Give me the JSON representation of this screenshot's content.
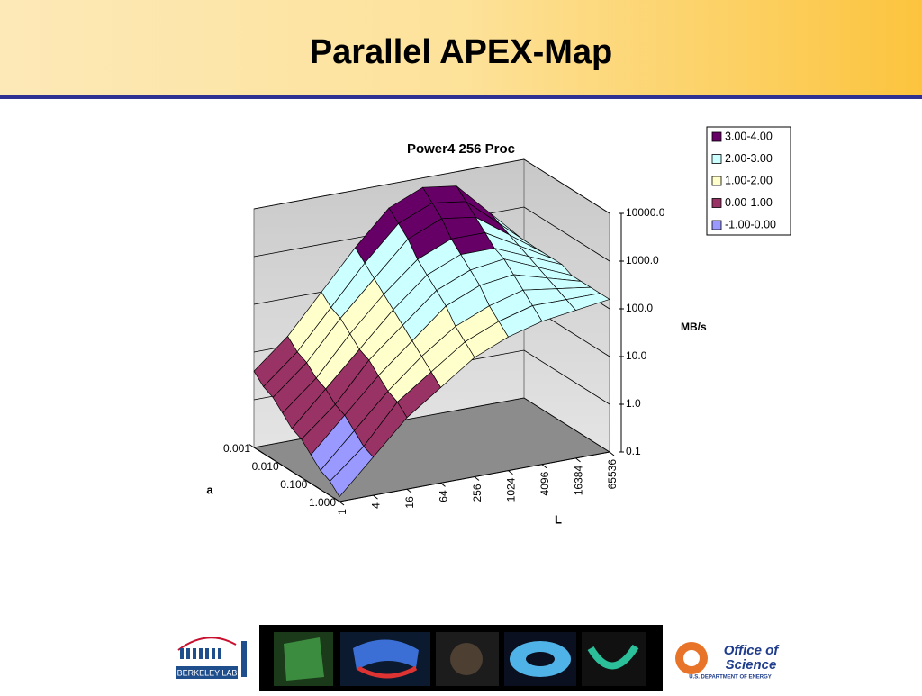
{
  "header": {
    "title": "Parallel APEX-Map"
  },
  "chart_data": {
    "type": "surface",
    "title": "Power4 256 Proc",
    "x_label": "L",
    "y_label": "a",
    "z_label": "MB/s",
    "x_categories": [
      "1",
      "4",
      "16",
      "64",
      "256",
      "1024",
      "4096",
      "16384",
      "65536"
    ],
    "y_categories": [
      "0.001",
      null,
      null,
      "0.010",
      null,
      null,
      "0.100",
      null,
      null,
      "1.000"
    ],
    "values": [
      [
        0.6,
        1.2,
        2.0,
        2.8,
        3.5,
        3.8,
        3.7,
        3.0,
        2.3
      ],
      [
        0.4,
        1.0,
        1.8,
        2.6,
        3.3,
        3.6,
        3.5,
        2.9,
        2.3
      ],
      [
        0.3,
        0.9,
        1.7,
        2.4,
        3.1,
        3.4,
        3.3,
        2.8,
        2.3
      ],
      [
        0.1,
        0.7,
        1.5,
        2.2,
        2.8,
        3.1,
        3.1,
        2.7,
        2.3
      ],
      [
        -0.1,
        0.6,
        1.3,
        2.0,
        2.6,
        2.9,
        2.9,
        2.6,
        2.3
      ],
      [
        -0.2,
        0.4,
        1.2,
        1.8,
        2.4,
        2.7,
        2.8,
        2.5,
        2.2
      ],
      [
        -0.4,
        0.3,
        1.0,
        1.6,
        2.2,
        2.5,
        2.6,
        2.4,
        2.2
      ],
      [
        -0.6,
        0.1,
        0.8,
        1.4,
        1.9,
        2.2,
        2.4,
        2.3,
        2.2
      ],
      [
        -0.7,
        -0.1,
        0.7,
        1.2,
        1.7,
        2.0,
        2.2,
        2.2,
        2.2
      ],
      [
        -0.9,
        -0.2,
        0.5,
        1.0,
        1.5,
        1.8,
        2.0,
        2.1,
        2.2
      ]
    ],
    "zlim": [
      -1,
      4
    ],
    "zticks": [
      {
        "value": -1,
        "label": "0.1"
      },
      {
        "value": 0,
        "label": "1.0"
      },
      {
        "value": 1,
        "label": "10.0"
      },
      {
        "value": 2,
        "label": "100.0"
      },
      {
        "value": 3,
        "label": "1000.0"
      },
      {
        "value": 4,
        "label": "10000.0"
      }
    ],
    "grid": true,
    "legend_position": "top-right",
    "bands": [
      {
        "name": "3.00-4.00",
        "color": "#660066"
      },
      {
        "name": "2.00-3.00",
        "color": "#ccffff"
      },
      {
        "name": "1.00-2.00",
        "color": "#ffffcc"
      },
      {
        "name": "0.00-1.00",
        "color": "#993366"
      },
      {
        "name": "-1.00-0.00",
        "color": "#9999ff"
      }
    ]
  },
  "footer": {
    "left_logo": "BERKELEY LAB",
    "right_logo_line1": "Office of",
    "right_logo_line2": "Science",
    "right_logo_sub": "U.S. DEPARTMENT OF ENERGY"
  }
}
